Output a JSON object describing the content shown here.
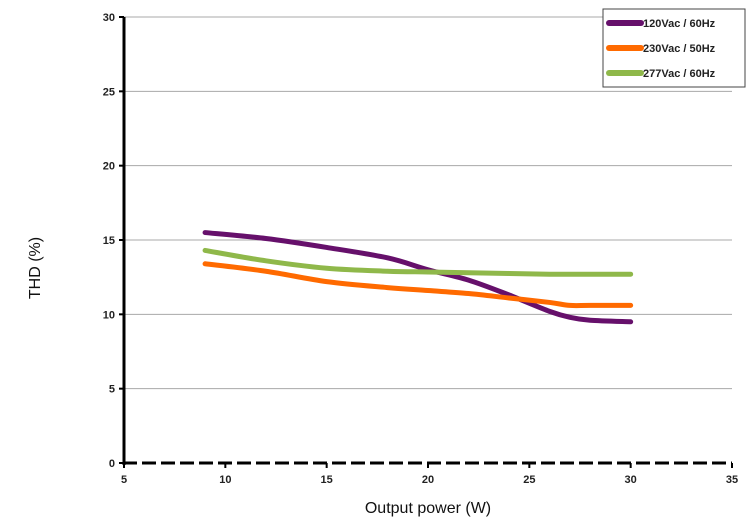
{
  "chart_data": {
    "type": "line",
    "title": "",
    "xlabel": "Output power (W)",
    "ylabel": "THD (%)",
    "xlim": [
      5,
      35
    ],
    "ylim": [
      0,
      30
    ],
    "x_ticks": [
      "5",
      "10",
      "15",
      "20",
      "25",
      "30",
      "35"
    ],
    "y_ticks": [
      "0",
      "5",
      "10",
      "15",
      "20",
      "25",
      "30"
    ],
    "grid": "horizontal",
    "legend": "top-right",
    "series": [
      {
        "name": "120Vac / 60Hz",
        "color": "#66106b",
        "x": [
          9,
          12,
          15,
          18,
          20,
          22,
          24,
          26,
          27,
          28,
          30
        ],
        "y": [
          15.5,
          15.1,
          14.5,
          13.8,
          13.0,
          12.3,
          11.3,
          10.2,
          9.8,
          9.6,
          9.5
        ]
      },
      {
        "name": "230Vac / 50Hz",
        "color": "#ff6a00",
        "x": [
          9,
          12,
          15,
          18,
          20,
          22,
          24,
          26,
          27,
          28,
          30
        ],
        "y": [
          13.4,
          12.9,
          12.2,
          11.8,
          11.6,
          11.4,
          11.1,
          10.8,
          10.6,
          10.6,
          10.6
        ]
      },
      {
        "name": "277Vac / 60Hz",
        "color": "#8fb84a",
        "x": [
          9,
          12,
          15,
          18,
          20,
          22,
          24,
          26,
          28,
          30
        ],
        "y": [
          14.3,
          13.6,
          13.1,
          12.9,
          12.85,
          12.8,
          12.75,
          12.7,
          12.7,
          12.7
        ]
      }
    ]
  }
}
